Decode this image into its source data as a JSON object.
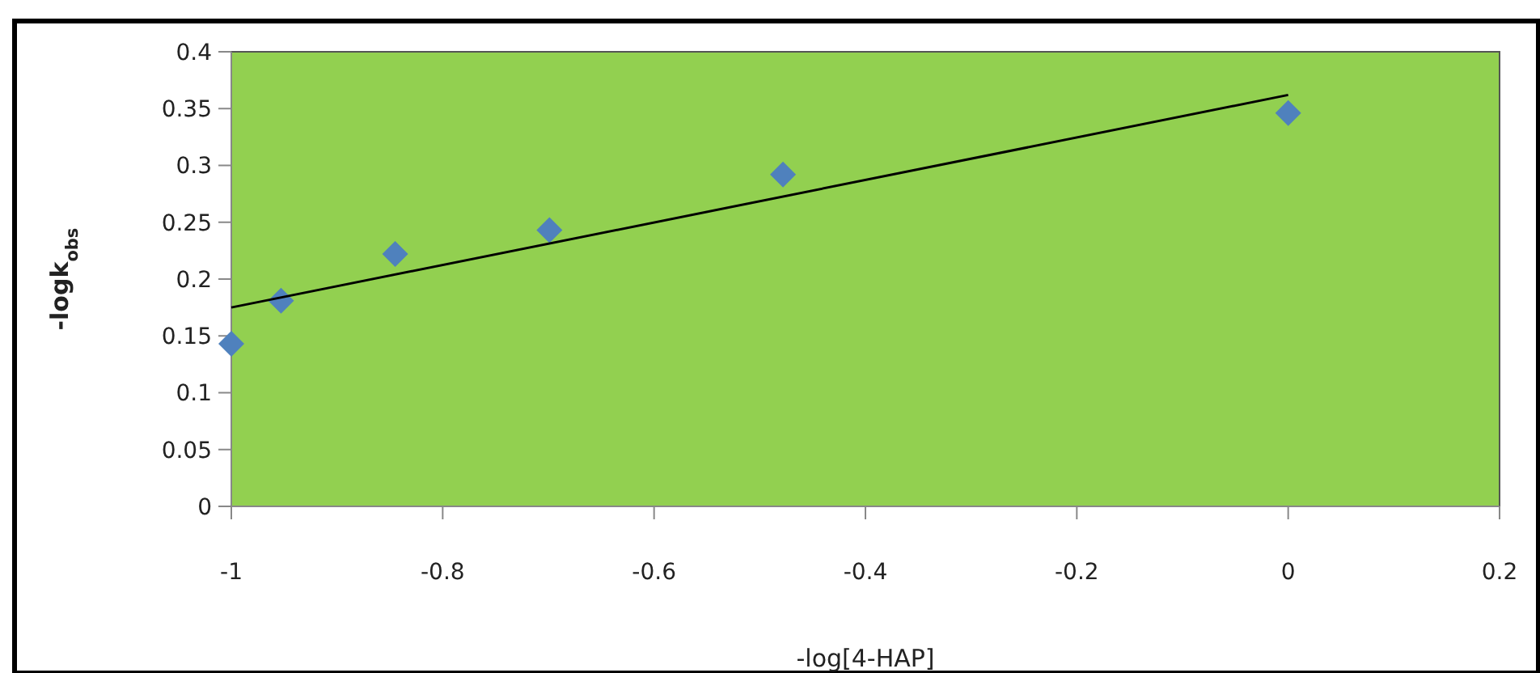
{
  "chart_data": {
    "type": "scatter",
    "xlabel": "-log[4-HAP]",
    "ylabel": "-logk$_{obs}$",
    "xlim": [
      -1,
      0.2
    ],
    "xticks": [
      -1,
      -0.8,
      -0.6,
      -0.4,
      -0.2,
      0,
      0.2
    ],
    "ylim": [
      0,
      0.4
    ],
    "yticks": [
      0,
      0.05,
      0.1,
      0.15,
      0.2,
      0.25,
      0.3,
      0.35,
      0.4
    ],
    "grid": false,
    "marker": "diamond",
    "series": [
      {
        "color": "#4f81bd",
        "x": [
          -1,
          -0.953,
          -0.845,
          -0.699,
          -0.478,
          0
        ],
        "values": [
          0.143,
          0.181,
          0.222,
          0.243,
          0.292,
          0.346
        ]
      },
      {
        "type": "line",
        "color": "#000000",
        "x": [
          -1,
          0
        ],
        "values": [
          0.175,
          0.362
        ],
        "marker": "none",
        "line_style": "solid"
      }
    ]
  }
}
